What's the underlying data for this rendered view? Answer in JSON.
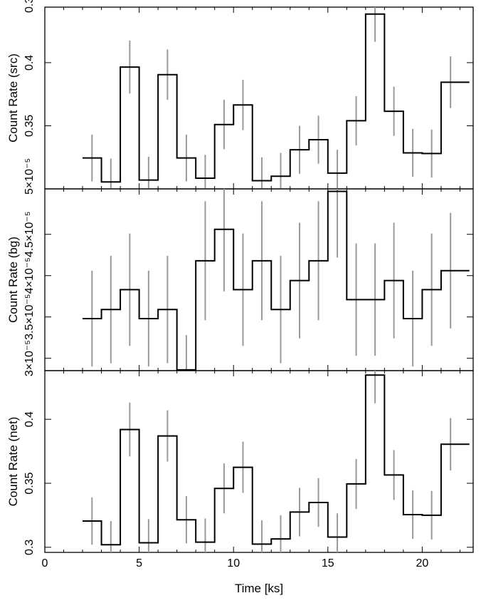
{
  "chart_data": [
    {
      "type": "line",
      "panel": "src",
      "ylabel": "Count Rate (src)",
      "ylim": [
        0.3,
        0.444
      ],
      "yticks": [
        0.35,
        0.4
      ],
      "yticklabels": [
        "0.35",
        "0.4"
      ],
      "ytop_partial_label": "0.3",
      "x_bin_edges": [
        2.0,
        3.0,
        4.0,
        5.0,
        6.0,
        7.0,
        8.0,
        9.0,
        10.0,
        11.0,
        12.0,
        13.0,
        14.0,
        15.0,
        16.0,
        17.0,
        18.0,
        19.0,
        20.0,
        21.0,
        22.5
      ],
      "values": [
        0.3245,
        0.3055,
        0.3965,
        0.307,
        0.3905,
        0.3245,
        0.3085,
        0.351,
        0.3665,
        0.3065,
        0.31,
        0.331,
        0.339,
        0.3125,
        0.354,
        0.4385,
        0.3615,
        0.3285,
        0.328,
        0.3845
      ],
      "errors": [
        0.0185,
        0.0185,
        0.021,
        0.0185,
        0.02,
        0.0185,
        0.0185,
        0.0195,
        0.02,
        0.0185,
        0.0185,
        0.019,
        0.019,
        0.0185,
        0.0195,
        0.022,
        0.0195,
        0.019,
        0.019,
        0.0205
      ],
      "error_x": [
        2.5,
        3.5,
        4.5,
        5.5,
        6.5,
        7.5,
        8.5,
        9.5,
        10.5,
        11.5,
        12.5,
        13.5,
        14.5,
        15.5,
        16.5,
        17.5,
        18.5,
        19.5,
        20.5,
        21.5
      ]
    },
    {
      "type": "line",
      "panel": "bg",
      "ylabel": "Count Rate (bg)",
      "ylim": [
        2.85e-05,
        5.05e-05
      ],
      "yticks": [
        3e-05,
        3.5e-05,
        4e-05,
        4.5e-05
      ],
      "yticklabels": [
        "3×10⁻⁵",
        "3.5×10⁻⁵",
        "4×10⁻⁵",
        "4.5×10⁻⁵"
      ],
      "ytop_partial_label": "5×10⁻⁵",
      "x_bin_edges": [
        2.0,
        3.0,
        4.0,
        5.0,
        6.0,
        7.0,
        8.0,
        9.0,
        10.0,
        11.0,
        12.0,
        13.0,
        14.0,
        15.0,
        16.0,
        17.0,
        18.0,
        19.0,
        20.0,
        21.0,
        22.5
      ],
      "values": [
        3.48e-05,
        3.59e-05,
        3.83e-05,
        3.48e-05,
        3.59e-05,
        2.86e-05,
        4.18e-05,
        4.56e-05,
        3.83e-05,
        4.18e-05,
        3.59e-05,
        3.94e-05,
        4.18e-05,
        5.02e-05,
        3.71e-05,
        3.71e-05,
        3.94e-05,
        3.48e-05,
        3.83e-05,
        4.06e-05
      ],
      "errors": [
        5.8e-06,
        6.5e-06,
        6.8e-06,
        5.8e-06,
        6.5e-06,
        4.2e-06,
        7.2e-06,
        7.5e-06,
        6.8e-06,
        7.2e-06,
        6.5e-06,
        7e-06,
        7.2e-06,
        8e-06,
        6.8e-06,
        6.8e-06,
        7e-06,
        5.8e-06,
        6.8e-06,
        7e-06
      ],
      "error_x": [
        2.5,
        3.5,
        4.5,
        5.5,
        6.5,
        7.5,
        8.5,
        9.5,
        10.5,
        11.5,
        12.5,
        13.5,
        14.5,
        15.5,
        16.5,
        17.5,
        18.5,
        19.5,
        20.5,
        21.5
      ]
    },
    {
      "type": "line",
      "panel": "net",
      "ylabel": "Count Rate (net)",
      "xlabel": "Time [ks]",
      "xlim": [
        0,
        22.7
      ],
      "xticks": [
        0,
        5,
        10,
        15,
        20
      ],
      "xticklabels": [
        "0",
        "5",
        "10",
        "15",
        "20"
      ],
      "ylim": [
        0.296,
        0.438
      ],
      "yticks": [
        0.3,
        0.35,
        0.4
      ],
      "yticklabels": [
        "0.3",
        "0.35",
        "0.4"
      ],
      "x_bin_edges": [
        2.0,
        3.0,
        4.0,
        5.0,
        6.0,
        7.0,
        8.0,
        9.0,
        10.0,
        11.0,
        12.0,
        13.0,
        14.0,
        15.0,
        16.0,
        17.0,
        18.0,
        19.0,
        20.0,
        21.0,
        22.5
      ],
      "values": [
        0.3205,
        0.302,
        0.392,
        0.3035,
        0.387,
        0.3215,
        0.304,
        0.346,
        0.3625,
        0.3025,
        0.3065,
        0.3275,
        0.335,
        0.308,
        0.3495,
        0.4345,
        0.3565,
        0.3255,
        0.325,
        0.3805
      ],
      "errors": [
        0.0185,
        0.0185,
        0.021,
        0.0185,
        0.02,
        0.0185,
        0.0185,
        0.0195,
        0.02,
        0.0185,
        0.0185,
        0.019,
        0.019,
        0.0185,
        0.0195,
        0.022,
        0.0195,
        0.019,
        0.019,
        0.0205
      ],
      "error_x": [
        2.5,
        3.5,
        4.5,
        5.5,
        6.5,
        7.5,
        8.5,
        9.5,
        10.5,
        11.5,
        12.5,
        13.5,
        14.5,
        15.5,
        16.5,
        17.5,
        18.5,
        19.5,
        20.5,
        21.5
      ]
    }
  ]
}
